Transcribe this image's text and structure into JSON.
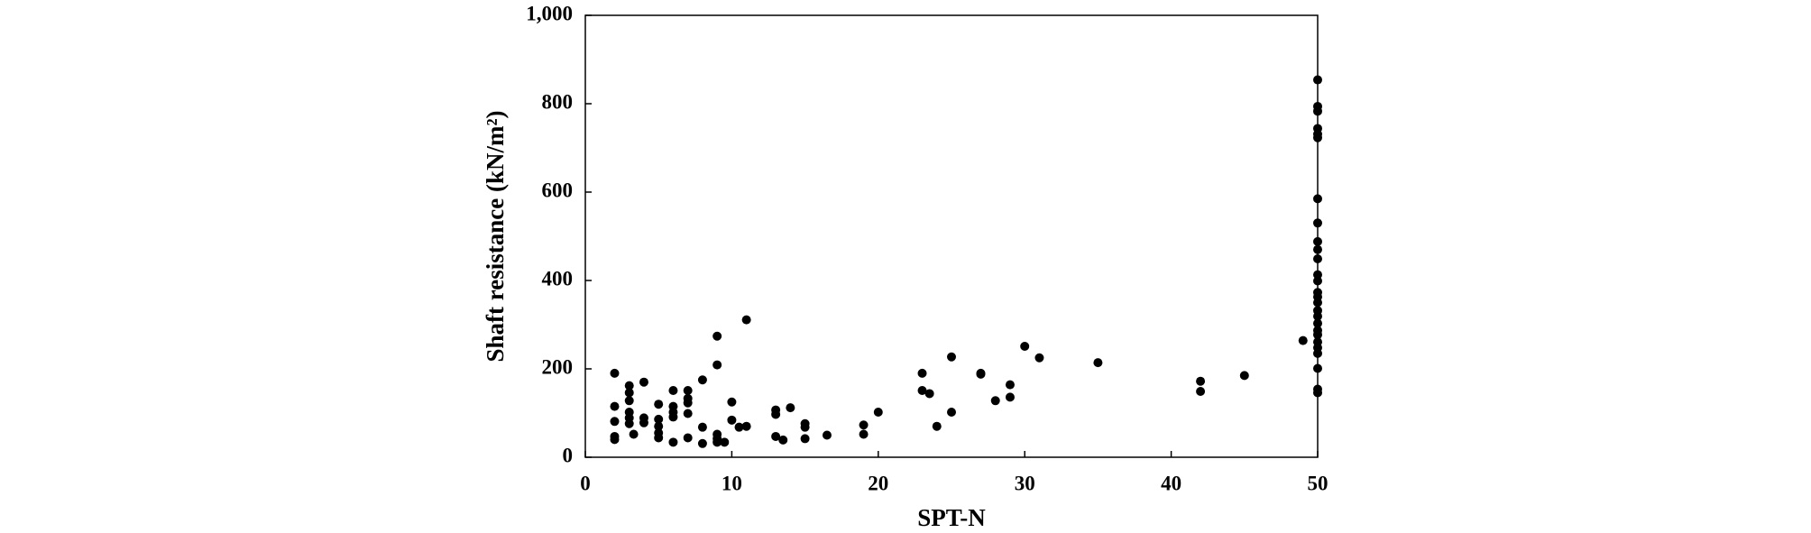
{
  "chart_data": {
    "type": "scatter",
    "x_label": "SPT-N",
    "y_label": "Shaft resistance (kN/m²)",
    "color": "#000000",
    "x": [
      2,
      2,
      2,
      2,
      2,
      3,
      3,
      3,
      3,
      3,
      3,
      3.3,
      4,
      4,
      4,
      5,
      5,
      5,
      5,
      5,
      6,
      6,
      6,
      6,
      6,
      7,
      7,
      7,
      7,
      7,
      8,
      8,
      8,
      9,
      9,
      9,
      9,
      9,
      9.5,
      10,
      10,
      10.5,
      11,
      11,
      13,
      13,
      13,
      13.5,
      14,
      15,
      15,
      15,
      16.5,
      19,
      19,
      20,
      23,
      23,
      23.5,
      24,
      25,
      25,
      27,
      27,
      28,
      29,
      29,
      30,
      31,
      35,
      42,
      42,
      45,
      49,
      50,
      50,
      50,
      50,
      50,
      50,
      50,
      50,
      50,
      50,
      50,
      50,
      50,
      50,
      50,
      50,
      50,
      50,
      50,
      50,
      50,
      50,
      50,
      50,
      50,
      50,
      50
    ],
    "y": [
      190,
      115,
      81,
      47,
      40,
      162,
      146,
      128,
      102,
      89,
      76,
      52,
      170,
      89,
      78,
      120,
      86,
      70,
      55,
      44,
      151,
      115,
      102,
      91,
      34,
      151,
      133,
      123,
      99,
      44,
      175,
      68,
      31,
      274,
      209,
      52,
      42,
      34,
      34,
      125,
      84,
      68,
      311,
      70,
      107,
      97,
      47,
      39,
      112,
      76,
      68,
      42,
      50,
      73,
      52,
      102,
      190,
      151,
      144,
      70,
      227,
      102,
      190,
      188,
      128,
      164,
      136,
      251,
      225,
      214,
      172,
      149,
      185,
      264,
      854,
      794,
      783,
      744,
      731,
      723,
      585,
      530,
      488,
      470,
      449,
      413,
      399,
      373,
      363,
      350,
      332,
      319,
      303,
      287,
      277,
      261,
      248,
      235,
      201,
      154,
      146
    ],
    "xlim": [
      0,
      50
    ],
    "xticks": [
      0,
      10,
      20,
      30,
      40,
      50
    ],
    "ylim": [
      0,
      1000
    ],
    "yticks": [
      0,
      200,
      400,
      600,
      800,
      {
        "value": 1000,
        "label": "1,000"
      }
    ]
  }
}
